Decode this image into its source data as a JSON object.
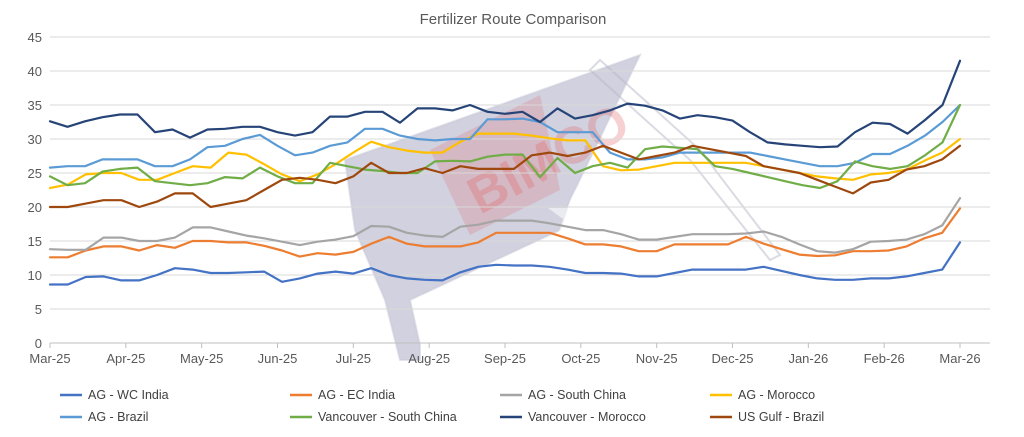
{
  "chart_data": {
    "type": "line",
    "title": "Fertilizer Route Comparison",
    "xlabel": "",
    "ylabel": "",
    "ylim": [
      0,
      45
    ],
    "yticks": [
      "0",
      "5",
      "10",
      "15",
      "20",
      "25",
      "30",
      "35",
      "40",
      "45"
    ],
    "x_tick_labels": [
      "Mar-25",
      "Apr-25",
      "May-25",
      "Jun-25",
      "Jul-25",
      "Aug-25",
      "Sep-25",
      "Oct-25",
      "Nov-25",
      "Dec-25",
      "Jan-26",
      "Feb-26",
      "Mar-26"
    ],
    "grid": "horizontal",
    "legend_position": "bottom",
    "series": [
      {
        "name": "AG - WC India",
        "color": "#4472C4",
        "values": [
          8.6,
          8.6,
          9.7,
          9.8,
          9.2,
          9.2,
          10,
          11,
          10.8,
          10.3,
          10.3,
          10.4,
          10.5,
          9,
          9.5,
          10.2,
          10.5,
          10.2,
          11,
          10,
          9.5,
          9.3,
          9.2,
          10.4,
          11.2,
          11.5,
          11.4,
          11.4,
          11.2,
          10.8,
          10.3,
          10.3,
          10.2,
          9.8,
          9.8,
          10.3,
          10.8,
          10.8,
          10.8,
          10.8,
          11.2,
          10.6,
          10,
          9.5,
          9.3,
          9.3,
          9.5,
          9.5,
          9.8,
          10.3,
          10.8,
          14.8
        ]
      },
      {
        "name": "AG - EC India",
        "color": "#ED7D31",
        "values": [
          12.6,
          12.6,
          13.6,
          14.2,
          14.2,
          13.6,
          14.4,
          14,
          15,
          15,
          14.8,
          14.8,
          14.3,
          13.6,
          12.7,
          13.2,
          13,
          13.4,
          14.6,
          15.6,
          14.6,
          14.2,
          14.2,
          14.2,
          14.8,
          16.2,
          16.2,
          16.2,
          16.2,
          15.4,
          14.5,
          14.5,
          14.2,
          13.5,
          13.5,
          14.5,
          14.5,
          14.5,
          14.5,
          15.6,
          14.6,
          13.8,
          13,
          12.8,
          12.9,
          13.5,
          13.5,
          13.6,
          14.2,
          15.4,
          16.2,
          19.8
        ]
      },
      {
        "name": "AG - South China",
        "color": "#A5A5A5",
        "values": [
          13.8,
          13.7,
          13.7,
          15.5,
          15.5,
          15,
          15,
          15.5,
          17,
          17,
          16.4,
          15.8,
          15.4,
          14.9,
          14.4,
          14.9,
          15.2,
          15.7,
          17.2,
          17.1,
          16.2,
          15.8,
          15.6,
          17.1,
          17.4,
          18,
          18,
          18,
          17.6,
          17.1,
          16.6,
          16.6,
          16,
          15.2,
          15.2,
          15.6,
          16,
          16,
          16,
          16.1,
          16.4,
          15.6,
          14.5,
          13.5,
          13.3,
          13.8,
          14.9,
          15,
          15.2,
          16,
          17.3,
          21.3
        ]
      },
      {
        "name": "AG - Morocco",
        "color": "#FFC000",
        "values": [
          22.8,
          23.3,
          24.8,
          25,
          25,
          24,
          24,
          25,
          26,
          25.8,
          28,
          27.7,
          26.3,
          24.8,
          23.8,
          24.8,
          26.3,
          28,
          29.6,
          28.8,
          28.3,
          28,
          28,
          29.6,
          30.8,
          30.8,
          30.8,
          30.5,
          30.1,
          29.8,
          29.8,
          26,
          25.4,
          25.5,
          26,
          26.5,
          26.5,
          26.5,
          26.5,
          26.5,
          26,
          25.5,
          25,
          24.5,
          24.2,
          24,
          24.8,
          25,
          25.5,
          26.8,
          28,
          30
        ]
      },
      {
        "name": "AG - Brazil",
        "color": "#5B9BD5",
        "values": [
          25.8,
          26,
          26,
          27,
          27,
          27,
          26,
          26,
          27,
          28.8,
          29,
          30,
          30.6,
          29,
          27.6,
          28,
          29,
          29.5,
          31.5,
          31.5,
          30.5,
          30,
          29.8,
          30,
          30,
          32.9,
          32.9,
          33,
          32.5,
          31,
          31,
          31,
          28,
          27,
          27,
          27.3,
          28,
          28,
          28,
          28,
          28,
          27.5,
          27,
          26.5,
          26,
          26,
          26.5,
          27.8,
          27.8,
          29,
          30.5,
          32.5,
          35
        ]
      },
      {
        "name": "Vancouver - South China",
        "color": "#70AD47",
        "values": [
          24.5,
          23.2,
          23.5,
          25.2,
          25.6,
          25.8,
          23.8,
          23.5,
          23.2,
          23.5,
          24.4,
          24.2,
          25.8,
          24.5,
          23.5,
          23.5,
          26.5,
          26,
          25.5,
          25.3,
          25,
          25,
          26.7,
          26.8,
          26.7,
          27.4,
          27.7,
          27.7,
          24.4,
          27.2,
          25,
          26,
          26.5,
          25.8,
          28.5,
          28.9,
          28.7,
          28.5,
          26,
          25.6,
          25,
          24.4,
          23.8,
          23.2,
          22.8,
          23.8,
          26.7,
          26,
          25.6,
          26,
          27.6,
          29.5,
          35
        ]
      },
      {
        "name": "Vancouver - Morocco",
        "color": "#264478",
        "values": [
          32.6,
          31.8,
          32.6,
          33.2,
          33.6,
          33.6,
          31,
          31.4,
          30.2,
          31.4,
          31.5,
          31.8,
          31.8,
          31,
          30.5,
          31,
          33.3,
          33.3,
          34,
          34,
          32.4,
          34.5,
          34.5,
          34.2,
          35,
          34,
          33.7,
          34,
          32.5,
          34.5,
          33,
          33.5,
          34.2,
          35.2,
          34.9,
          34.2,
          33,
          33.5,
          33.2,
          32.7,
          31,
          29.5,
          29.2,
          29,
          28.8,
          28.9,
          31,
          32.4,
          32.2,
          30.8,
          32.8,
          35,
          41.5
        ]
      },
      {
        "name": "US Gulf - Brazil",
        "color": "#9E480E",
        "values": [
          20,
          20,
          20.5,
          21,
          21,
          20,
          20.8,
          22,
          22,
          20,
          20.5,
          21,
          22.5,
          24,
          24.3,
          24,
          23.5,
          24.5,
          26.5,
          25,
          25,
          25.7,
          25,
          26,
          25.6,
          25.6,
          25.6,
          27.6,
          28,
          27.5,
          28,
          29,
          28,
          27,
          27.5,
          28,
          29,
          28.5,
          28,
          27.5,
          26,
          25.5,
          25,
          24,
          23,
          22,
          23.6,
          24,
          25.5,
          26,
          27,
          29
        ]
      }
    ]
  },
  "watermark": {
    "text": "BIMCO"
  }
}
